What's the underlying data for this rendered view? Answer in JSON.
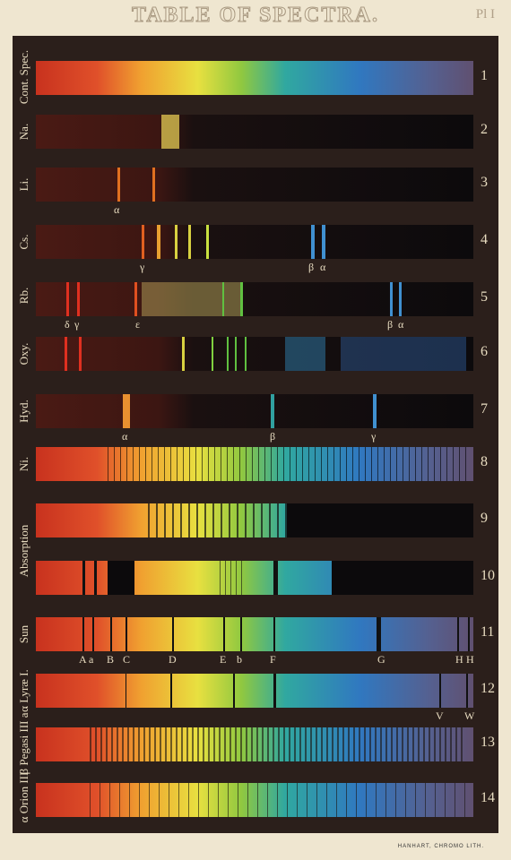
{
  "header": {
    "title": "TABLE OF SPECTRA.",
    "plate": "Pl I"
  },
  "rows": [
    {
      "number": "1"
    },
    {
      "number": "2"
    },
    {
      "number": "3",
      "lines": [
        "α"
      ]
    },
    {
      "number": "4",
      "lines": [
        "γ",
        "β",
        "α"
      ]
    },
    {
      "number": "5",
      "lines": [
        "δ",
        "γ",
        "ε",
        "β",
        "α"
      ]
    },
    {
      "number": "6"
    },
    {
      "number": "7",
      "lines": [
        "α",
        "β",
        "γ"
      ]
    },
    {
      "number": "8"
    },
    {
      "number": "9"
    },
    {
      "number": "10"
    },
    {
      "number": "11",
      "lines": [
        "A",
        "a",
        "B",
        "C",
        "D",
        "E",
        "b",
        "F",
        "G",
        "H",
        "H"
      ]
    },
    {
      "number": "12",
      "lines": [
        "V",
        "W"
      ]
    },
    {
      "number": "13"
    },
    {
      "number": "14"
    }
  ],
  "side_labels": [
    "Cont. Spec.",
    "Na.",
    "Li.",
    "Cs.",
    "Rb.",
    "Oxy.",
    "Hyd.",
    "Ni.",
    "Absorption",
    "Sun",
    "α Lyræ I.",
    "β Pegasi III a",
    "α Orion III"
  ],
  "footer": {
    "credit": "HANHART, CHROMO LITH."
  }
}
